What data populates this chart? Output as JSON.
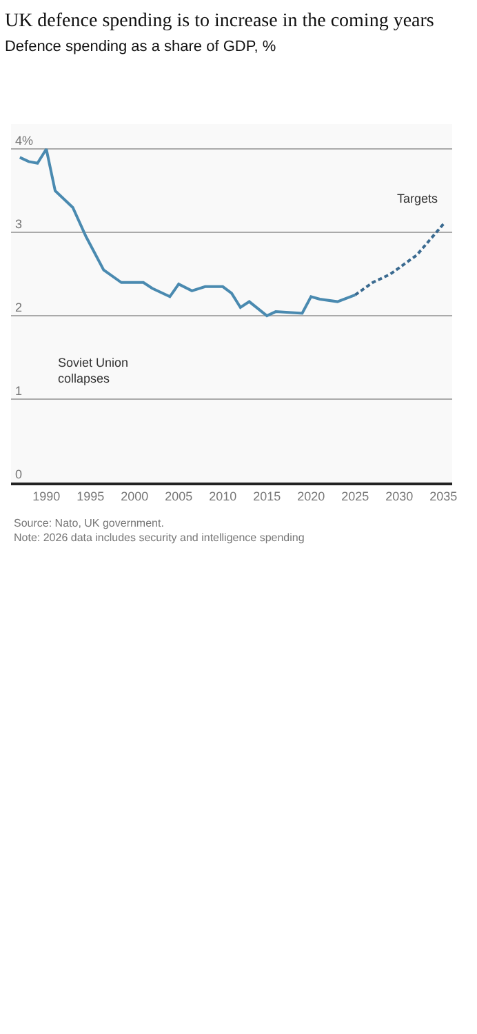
{
  "chart_data": {
    "type": "line",
    "title": "UK defence spending is to increase in the coming years",
    "subtitle": "Defence spending as a share of GDP, %",
    "series": [
      {
        "color": "#4a8ab0",
        "line_style": "solid",
        "x": [
          1987,
          1988,
          1989,
          1990,
          1991,
          1993,
          1994.5,
          1996.5,
          1998.5,
          2001,
          2002,
          2004,
          2005,
          2006.5,
          2008,
          2010,
          2011,
          2012,
          2013,
          2015,
          2016,
          2019,
          2020,
          2021,
          2023,
          2025
        ],
        "values": [
          3.9,
          3.85,
          3.83,
          4.0,
          3.5,
          3.3,
          2.95,
          2.55,
          2.4,
          2.4,
          2.33,
          2.23,
          2.38,
          2.3,
          2.35,
          2.35,
          2.27,
          2.1,
          2.17,
          2.0,
          2.05,
          2.03,
          2.23,
          2.2,
          2.17,
          2.25
        ]
      },
      {
        "color": "#3a6a90",
        "line_style": "dashed",
        "x": [
          2025,
          2027,
          2029,
          2032,
          2035
        ],
        "values": [
          2.25,
          2.4,
          2.5,
          2.73,
          3.1
        ]
      }
    ],
    "xlim": [
      1986,
      2036
    ],
    "xticks": [
      1990,
      1995,
      2000,
      2005,
      2010,
      2015,
      2020,
      2025,
      2030,
      2035
    ],
    "ylim": [
      0,
      4.3
    ],
    "yticks": [
      0,
      1,
      2,
      3,
      {
        "value": 4,
        "label": "4%"
      }
    ],
    "grid": "y",
    "annotations": [
      "Soviet Union\ncollapses",
      "Targets",
      "Source: Nato, UK government. Note: 2026 data includes security and intelligence spending"
    ]
  }
}
